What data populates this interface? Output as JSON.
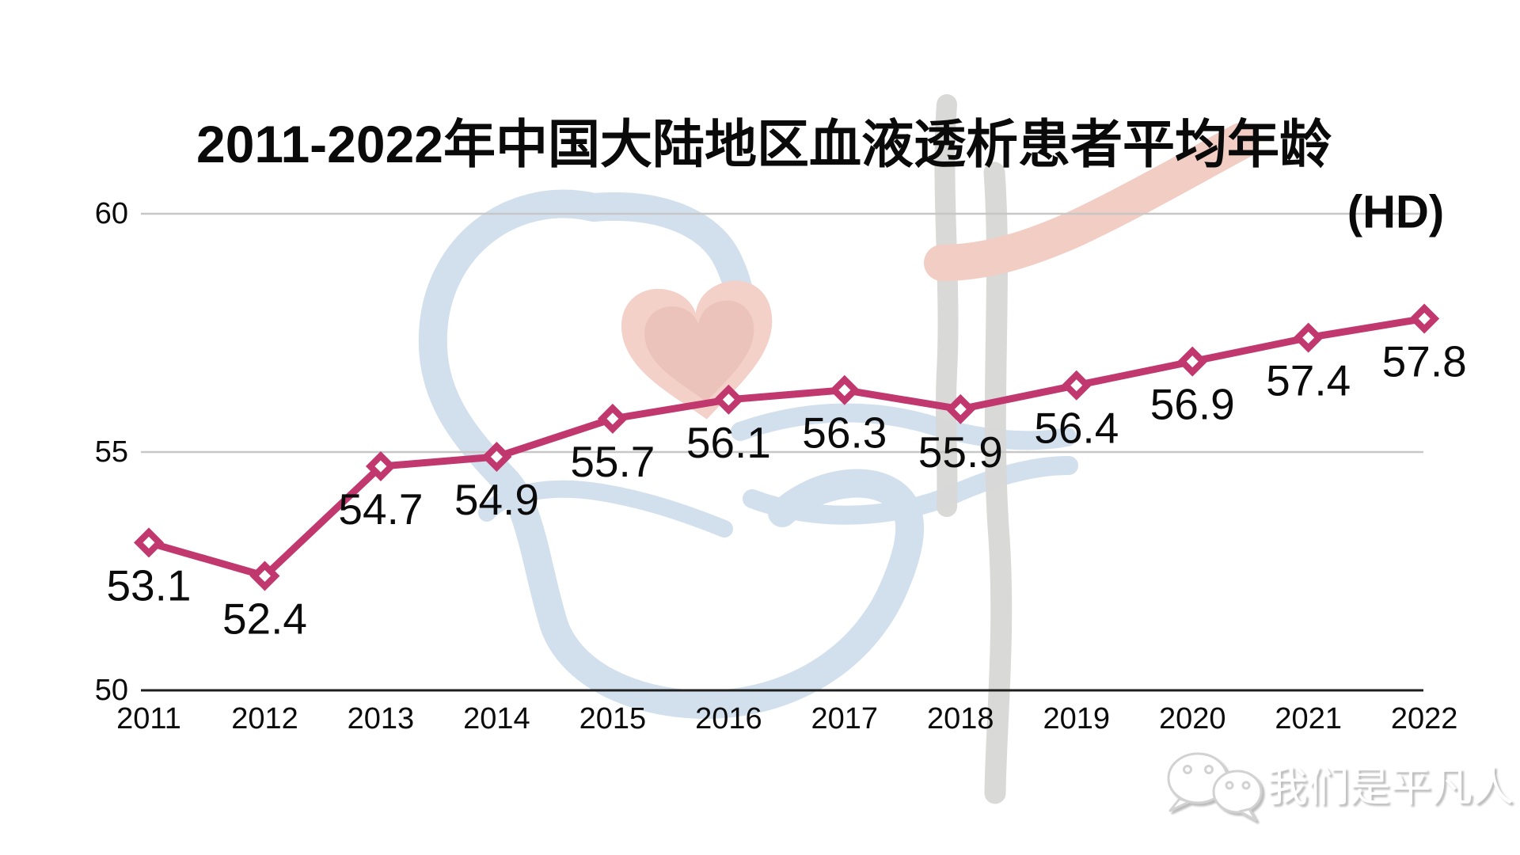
{
  "page": {
    "background": "#ffffff"
  },
  "header": {
    "title": "2011-2022年中国大陆地区血液透析患者平均年龄",
    "unit_label": "(HD)"
  },
  "chart_data": {
    "type": "line",
    "title": "2011-2022年中国大陆地区血液透析患者平均年龄",
    "subtitle": "(HD)",
    "categories": [
      "2011",
      "2012",
      "2013",
      "2014",
      "2015",
      "2016",
      "2017",
      "2018",
      "2019",
      "2020",
      "2021",
      "2022"
    ],
    "values": [
      53.1,
      52.4,
      54.7,
      54.9,
      55.7,
      56.1,
      56.3,
      55.9,
      56.4,
      56.9,
      57.4,
      57.8
    ],
    "series_name": "血液透析患者平均年龄(HD)",
    "xlabel": "",
    "ylabel": "",
    "ylim": [
      50,
      60
    ],
    "yticks": [
      60,
      55,
      50
    ],
    "grid": "horizontal",
    "legend": "none",
    "marker": "diamond",
    "data_labels": true
  },
  "colors": {
    "line": "#c1386f",
    "marker_center": "#ffffff",
    "grid": "#c7c7c7",
    "axis": "#1f1f1f",
    "text": "#0b0b0b",
    "watermark_blue": "#d2e0ee",
    "watermark_heart": "#f3d1c8",
    "watermark_heart_dark": "#ebc3ba",
    "watermark_gray": "#d7d7d5",
    "watermark_ribbon": "#f1cdc4"
  },
  "footer": {
    "wechat_label": "我们是平凡人",
    "icon": "wechat-icon"
  }
}
